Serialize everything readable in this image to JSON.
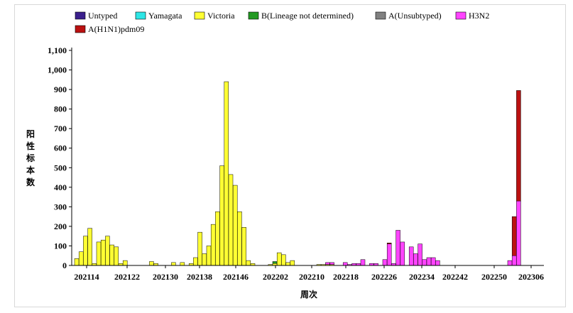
{
  "chart_data": {
    "type": "bar",
    "stacked": true,
    "xlabel": "周次",
    "ylabel": "阳性标本数",
    "ylim": [
      0,
      1100
    ],
    "yticks": [
      0,
      100,
      200,
      300,
      400,
      500,
      600,
      700,
      800,
      900,
      1000,
      1100
    ],
    "ytick_labels": [
      "0",
      "100",
      "200",
      "300",
      "400",
      "500",
      "600",
      "700",
      "800",
      "900",
      "1,000",
      "1,100"
    ],
    "x_tick_labels": [
      "202114",
      "202122",
      "202130",
      "202138",
      "202146",
      "202202",
      "202210",
      "202218",
      "202226",
      "202234",
      "202242",
      "202250",
      "202306"
    ],
    "grid": false,
    "legend_position": "top",
    "legend": [
      {
        "name": "Untyped",
        "color": "#3a1f8c"
      },
      {
        "name": "Yamagata",
        "color": "#2ee6e6"
      },
      {
        "name": "Victoria",
        "color": "#ffff33"
      },
      {
        "name": "B(Lineage not determined)",
        "color": "#229922"
      },
      {
        "name": "A(Unsubtyped)",
        "color": "#808080"
      },
      {
        "name": "H3N2",
        "color": "#ff44ff"
      },
      {
        "name": "A(H1N1)pdm09",
        "color": "#bb1111"
      }
    ],
    "num_bars": 104,
    "x_start_week": "202114",
    "series": [
      {
        "name": "Victoria",
        "values": [
          35,
          70,
          150,
          190,
          10,
          120,
          130,
          150,
          105,
          95,
          10,
          25,
          0,
          0,
          0,
          0,
          0,
          20,
          10,
          0,
          0,
          0,
          15,
          0,
          15,
          0,
          10,
          40,
          170,
          60,
          100,
          210,
          275,
          510,
          940,
          465,
          410,
          275,
          195,
          25,
          10,
          0,
          0,
          0,
          5,
          10,
          65,
          55,
          15,
          25,
          0,
          0,
          0,
          0,
          0,
          5,
          5,
          5,
          5,
          0,
          0,
          0,
          0,
          0,
          0,
          0,
          0,
          0,
          0,
          0,
          0,
          0,
          0,
          0,
          0,
          0,
          0,
          0,
          0,
          0,
          0,
          0,
          0,
          0,
          0,
          0,
          0,
          0,
          0,
          0,
          0,
          0,
          0,
          0,
          0,
          0,
          0,
          0,
          0,
          0,
          0,
          0,
          0,
          0
        ]
      },
      {
        "name": "B(Lineage not determined)",
        "values": [
          0,
          0,
          0,
          0,
          0,
          0,
          0,
          0,
          0,
          0,
          0,
          0,
          0,
          0,
          0,
          0,
          0,
          0,
          0,
          0,
          0,
          0,
          0,
          0,
          0,
          0,
          0,
          0,
          0,
          0,
          0,
          0,
          0,
          0,
          0,
          0,
          0,
          0,
          0,
          0,
          0,
          0,
          0,
          0,
          0,
          10,
          0,
          0,
          0,
          0,
          0,
          0,
          0,
          0,
          0,
          0,
          0,
          0,
          0,
          0,
          0,
          0,
          0,
          0,
          0,
          0,
          0,
          0,
          0,
          0,
          0,
          0,
          0,
          0,
          0,
          0,
          0,
          0,
          0,
          0,
          0,
          0,
          0,
          0,
          0,
          0,
          0,
          0,
          0,
          0,
          0,
          0,
          0,
          0,
          0,
          0,
          0,
          0,
          0,
          0,
          0,
          0,
          0,
          0
        ]
      },
      {
        "name": "H3N2",
        "values": [
          0,
          0,
          0,
          0,
          0,
          0,
          0,
          0,
          0,
          0,
          0,
          0,
          0,
          0,
          0,
          0,
          0,
          0,
          0,
          0,
          0,
          0,
          0,
          0,
          0,
          0,
          0,
          0,
          0,
          0,
          0,
          0,
          0,
          0,
          0,
          0,
          0,
          0,
          0,
          0,
          0,
          0,
          0,
          0,
          0,
          0,
          0,
          0,
          0,
          0,
          0,
          0,
          0,
          0,
          0,
          0,
          0,
          10,
          10,
          0,
          0,
          15,
          5,
          10,
          10,
          30,
          0,
          10,
          10,
          0,
          30,
          110,
          10,
          180,
          120,
          0,
          95,
          60,
          110,
          30,
          40,
          40,
          25,
          0,
          0,
          0,
          0,
          0,
          0,
          0,
          0,
          0,
          0,
          0,
          0,
          0,
          0,
          0,
          0,
          0,
          0,
          0,
          0,
          0
        ]
      },
      {
        "name": "A(H1N1)pdm09",
        "values": [
          0,
          0,
          0,
          0,
          0,
          0,
          0,
          0,
          0,
          0,
          0,
          0,
          0,
          0,
          0,
          0,
          0,
          0,
          0,
          0,
          0,
          0,
          0,
          0,
          0,
          0,
          0,
          0,
          0,
          0,
          0,
          0,
          0,
          0,
          0,
          0,
          0,
          0,
          0,
          0,
          0,
          0,
          0,
          0,
          0,
          0,
          0,
          0,
          0,
          0,
          0,
          0,
          0,
          0,
          0,
          0,
          0,
          0,
          0,
          0,
          0,
          0,
          0,
          0,
          0,
          0,
          0,
          0,
          0,
          0,
          0,
          5,
          0,
          0,
          0,
          0,
          0,
          0,
          0,
          0,
          0,
          0,
          0,
          0,
          0,
          0,
          0,
          0,
          0,
          0,
          0,
          0,
          0,
          0,
          0,
          0,
          0,
          0,
          0,
          0,
          0,
          0,
          0,
          0
        ]
      }
    ],
    "extra_bars": [
      {
        "week": "202301",
        "H3N2": 25,
        "A(H1N1)pdm09": 0
      },
      {
        "week": "202302",
        "H3N2": 50,
        "A(H1N1)pdm09": 200
      },
      {
        "week": "202303",
        "H3N2": 330,
        "A(H1N1)pdm09": 565
      }
    ]
  }
}
